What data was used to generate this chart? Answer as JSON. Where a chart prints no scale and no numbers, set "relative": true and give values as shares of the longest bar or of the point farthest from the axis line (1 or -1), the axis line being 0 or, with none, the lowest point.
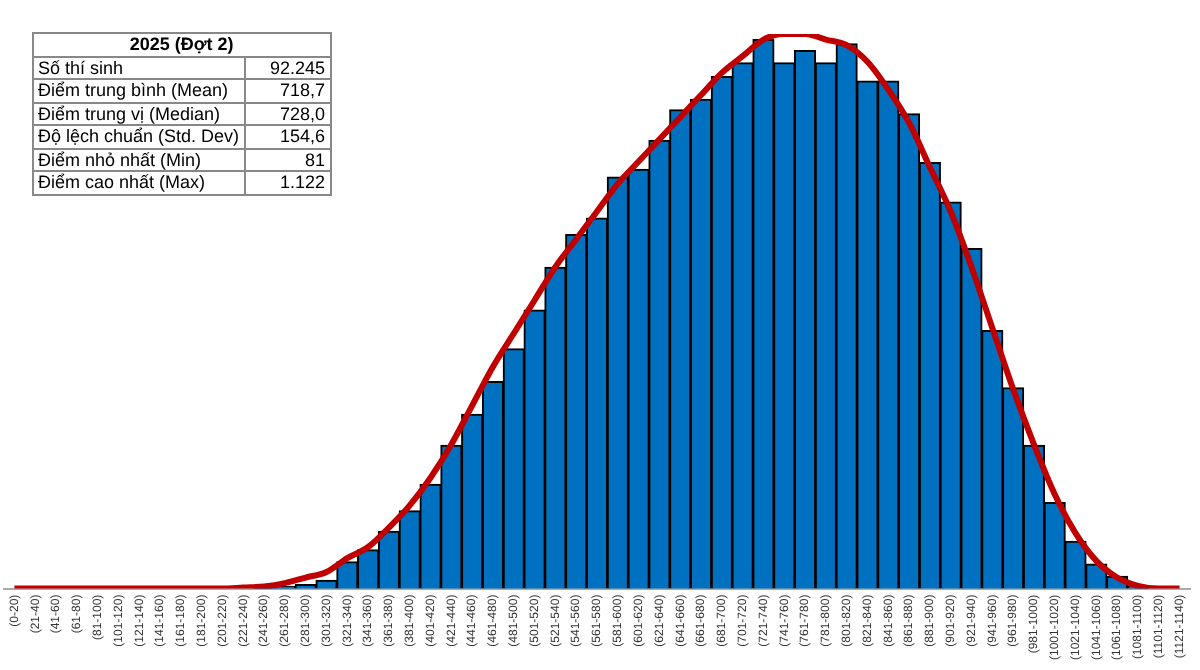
{
  "chart_data": {
    "type": "bar",
    "relative": true,
    "title": "2025 (Đợt 2)",
    "annotations": [
      "Số thí sinh",
      "92.245",
      "Điểm trung bình (Mean)",
      "718,7",
      "Điểm trung vị (Median)",
      "728,0",
      "Độ lệch chuẩn (Std. Dev)",
      "154,6",
      "Điểm nhỏ nhất (Min)",
      "81",
      "Điểm cao nhất (Max)",
      "1.122"
    ],
    "categories": [
      "(0-20)",
      "(21-40)",
      "(41-60)",
      "(61-80)",
      "(81-100)",
      "(101-120)",
      "(121-140)",
      "(141-160)",
      "(161-180)",
      "(181-200)",
      "(201-220)",
      "(221-240)",
      "(241-260)",
      "(261-280)",
      "(281-300)",
      "(301-320)",
      "(321-340)",
      "(341-360)",
      "(361-380)",
      "(381-400)",
      "(401-420)",
      "(421-440)",
      "(441-460)",
      "(461-480)",
      "(481-500)",
      "(501-520)",
      "(521-540)",
      "(541-560)",
      "(561-580)",
      "(581-600)",
      "(601-620)",
      "(621-640)",
      "(641-660)",
      "(661-680)",
      "(681-700)",
      "(701-720)",
      "(721-740)",
      "(741-760)",
      "(761-780)",
      "(781-800)",
      "(801-820)",
      "(821-840)",
      "(841-860)",
      "(861-880)",
      "(881-900)",
      "(901-920)",
      "(921-940)",
      "(941-960)",
      "(961-980)",
      "(981-1000)",
      "(1001-1020)",
      "(1021-1040)",
      "(1041-1060)",
      "(1061-1080)",
      "(1081-1100)",
      "(1101-1120)",
      "(1121-1140)"
    ],
    "series": [
      {
        "color": "#0070c0",
        "values": [
          0,
          0,
          0,
          0,
          0,
          0,
          0,
          0,
          0,
          0,
          0,
          0,
          0.002,
          0.004,
          0.007,
          0.015,
          0.048,
          0.07,
          0.103,
          0.14,
          0.188,
          0.258,
          0.314,
          0.373,
          0.432,
          0.502,
          0.579,
          0.638,
          0.668,
          0.742,
          0.756,
          0.808,
          0.863,
          0.882,
          0.923,
          0.948,
          0.99,
          0.948,
          0.97,
          0.948,
          0.982,
          0.915,
          0.915,
          0.856,
          0.768,
          0.697,
          0.613,
          0.465,
          0.362,
          0.258,
          0.155,
          0.085,
          0.044,
          0.022,
          0.004,
          0,
          0
        ]
      },
      {
        "type": "line",
        "color": "#c00000",
        "values": [
          0,
          0,
          0,
          0,
          0,
          0,
          0,
          0,
          0,
          0,
          0,
          0.002,
          0.004,
          0.01,
          0.02,
          0.03,
          0.055,
          0.075,
          0.11,
          0.15,
          0.2,
          0.26,
          0.33,
          0.4,
          0.46,
          0.52,
          0.58,
          0.63,
          0.68,
          0.73,
          0.77,
          0.81,
          0.85,
          0.89,
          0.93,
          0.96,
          0.99,
          1,
          1,
          0.99,
          0.98,
          0.95,
          0.9,
          0.84,
          0.76,
          0.68,
          0.58,
          0.47,
          0.36,
          0.26,
          0.17,
          0.1,
          0.05,
          0.02,
          0.005,
          0,
          0
        ]
      }
    ],
    "legend": false,
    "grid": false
  }
}
